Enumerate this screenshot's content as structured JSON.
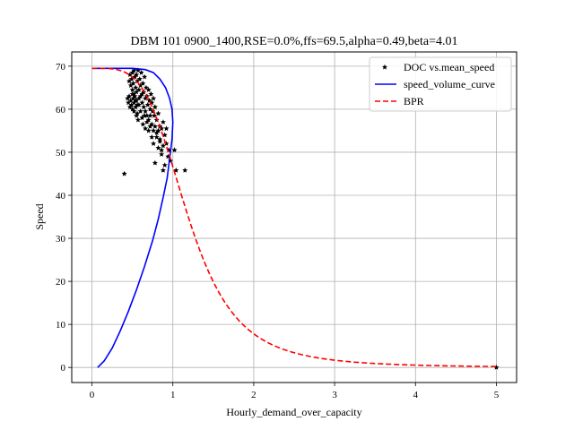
{
  "chart_data": {
    "type": "scatter",
    "title": "DBM 101 0900_1400,RSE=0.0%,ffs=69.5,alpha=0.49,beta=4.01",
    "xlabel": "Hourly_demand_over_capacity",
    "ylabel": "Speed",
    "xlim": [
      -0.25,
      5.25
    ],
    "ylim": [
      -3.5,
      73.3
    ],
    "x_ticks": [
      0,
      1,
      2,
      3,
      4,
      5
    ],
    "y_ticks": [
      0,
      10,
      20,
      30,
      40,
      50,
      60,
      70
    ],
    "grid": true,
    "legend_position": "top-right",
    "params": {
      "ffs": 69.5,
      "alpha": 0.49,
      "beta": 4.01
    },
    "series": [
      {
        "name": "DOC vs.mean_speed",
        "kind": "scatter",
        "color": "#000000",
        "marker": "star",
        "points": [
          [
            0.4,
            45.0
          ],
          [
            0.44,
            62.5
          ],
          [
            0.45,
            61.5
          ],
          [
            0.46,
            63.0
          ],
          [
            0.47,
            60.5
          ],
          [
            0.48,
            62.0
          ],
          [
            0.49,
            61.0
          ],
          [
            0.5,
            63.5
          ],
          [
            0.5,
            60.0
          ],
          [
            0.51,
            62.5
          ],
          [
            0.52,
            61.5
          ],
          [
            0.52,
            59.5
          ],
          [
            0.53,
            63.0
          ],
          [
            0.54,
            60.5
          ],
          [
            0.55,
            58.5
          ],
          [
            0.55,
            62.0
          ],
          [
            0.56,
            59.0
          ],
          [
            0.57,
            57.5
          ],
          [
            0.58,
            61.0
          ],
          [
            0.6,
            59.5
          ],
          [
            0.62,
            58.0
          ],
          [
            0.63,
            56.5
          ],
          [
            0.65,
            58.5
          ],
          [
            0.66,
            55.5
          ],
          [
            0.68,
            57.0
          ],
          [
            0.7,
            55.0
          ],
          [
            0.72,
            56.0
          ],
          [
            0.74,
            53.5
          ],
          [
            0.76,
            52.0
          ],
          [
            0.78,
            47.5
          ],
          [
            0.8,
            54.5
          ],
          [
            0.82,
            51.0
          ],
          [
            0.84,
            53.0
          ],
          [
            0.86,
            49.5
          ],
          [
            0.88,
            51.5
          ],
          [
            0.9,
            47.0
          ],
          [
            0.92,
            52.0
          ],
          [
            0.94,
            49.0
          ],
          [
            0.95,
            50.5
          ],
          [
            0.97,
            48.0
          ],
          [
            0.88,
            45.8
          ],
          [
            1.02,
            50.5
          ],
          [
            1.04,
            45.8
          ],
          [
            1.15,
            45.8
          ],
          [
            0.46,
            66.5
          ],
          [
            0.47,
            68.0
          ],
          [
            0.48,
            65.5
          ],
          [
            0.49,
            67.0
          ],
          [
            0.5,
            68.5
          ],
          [
            0.51,
            66.0
          ],
          [
            0.52,
            69.0
          ],
          [
            0.53,
            67.5
          ],
          [
            0.54,
            65.0
          ],
          [
            0.55,
            68.0
          ],
          [
            0.56,
            66.5
          ],
          [
            0.57,
            69.0
          ],
          [
            0.58,
            64.5
          ],
          [
            0.59,
            67.0
          ],
          [
            0.6,
            65.5
          ],
          [
            0.61,
            68.5
          ],
          [
            0.62,
            63.5
          ],
          [
            0.63,
            66.0
          ],
          [
            0.64,
            64.0
          ],
          [
            0.65,
            67.5
          ],
          [
            0.66,
            62.5
          ],
          [
            0.67,
            65.0
          ],
          [
            0.68,
            63.0
          ],
          [
            0.69,
            61.0
          ],
          [
            0.7,
            64.5
          ],
          [
            0.71,
            62.0
          ],
          [
            0.72,
            60.0
          ],
          [
            0.73,
            63.5
          ],
          [
            0.74,
            61.5
          ],
          [
            0.75,
            59.5
          ],
          [
            0.76,
            62.5
          ],
          [
            0.77,
            58.5
          ],
          [
            0.78,
            60.5
          ],
          [
            0.8,
            57.5
          ],
          [
            0.82,
            59.0
          ],
          [
            0.84,
            56.0
          ],
          [
            0.86,
            55.5
          ],
          [
            0.88,
            57.0
          ],
          [
            0.9,
            54.0
          ],
          [
            0.92,
            55.5
          ],
          [
            0.55,
            64.0
          ],
          [
            0.58,
            62.5
          ],
          [
            0.6,
            63.0
          ],
          [
            0.62,
            61.5
          ],
          [
            0.64,
            60.5
          ],
          [
            0.66,
            59.5
          ],
          [
            0.68,
            58.5
          ],
          [
            0.7,
            57.5
          ],
          [
            0.72,
            58.5
          ],
          [
            0.74,
            56.5
          ],
          [
            0.76,
            55.0
          ],
          [
            0.78,
            56.0
          ],
          [
            0.8,
            53.5
          ],
          [
            0.82,
            55.0
          ],
          [
            0.84,
            52.5
          ],
          [
            0.86,
            50.5
          ],
          [
            0.5,
            64.5
          ],
          [
            0.52,
            63.5
          ],
          [
            0.54,
            62.0
          ],
          [
            0.56,
            61.0
          ],
          [
            5.0,
            0.0
          ]
        ]
      },
      {
        "name": "speed_volume_curve",
        "kind": "line",
        "color": "#0000ff",
        "dash": "solid",
        "points": [
          [
            0.07,
            0.0
          ],
          [
            0.15,
            1.5
          ],
          [
            0.25,
            4.5
          ],
          [
            0.35,
            8.5
          ],
          [
            0.45,
            13.0
          ],
          [
            0.55,
            18.0
          ],
          [
            0.65,
            23.5
          ],
          [
            0.75,
            29.5
          ],
          [
            0.82,
            34.5
          ],
          [
            0.88,
            39.5
          ],
          [
            0.93,
            44.0
          ],
          [
            0.96,
            48.5
          ],
          [
            0.99,
            53.0
          ],
          [
            1.0,
            57.0
          ],
          [
            0.99,
            60.0
          ],
          [
            0.96,
            62.5
          ],
          [
            0.91,
            65.0
          ],
          [
            0.84,
            67.0
          ],
          [
            0.76,
            68.5
          ],
          [
            0.66,
            69.2
          ],
          [
            0.5,
            69.5
          ],
          [
            0.3,
            69.5
          ],
          [
            0.0,
            69.5
          ]
        ]
      },
      {
        "name": "BPR",
        "kind": "function",
        "formula": "ffs/(1+alpha*x^beta)",
        "color": "#ff0000",
        "dash": "dashed",
        "x_range": [
          0,
          5
        ]
      }
    ]
  }
}
